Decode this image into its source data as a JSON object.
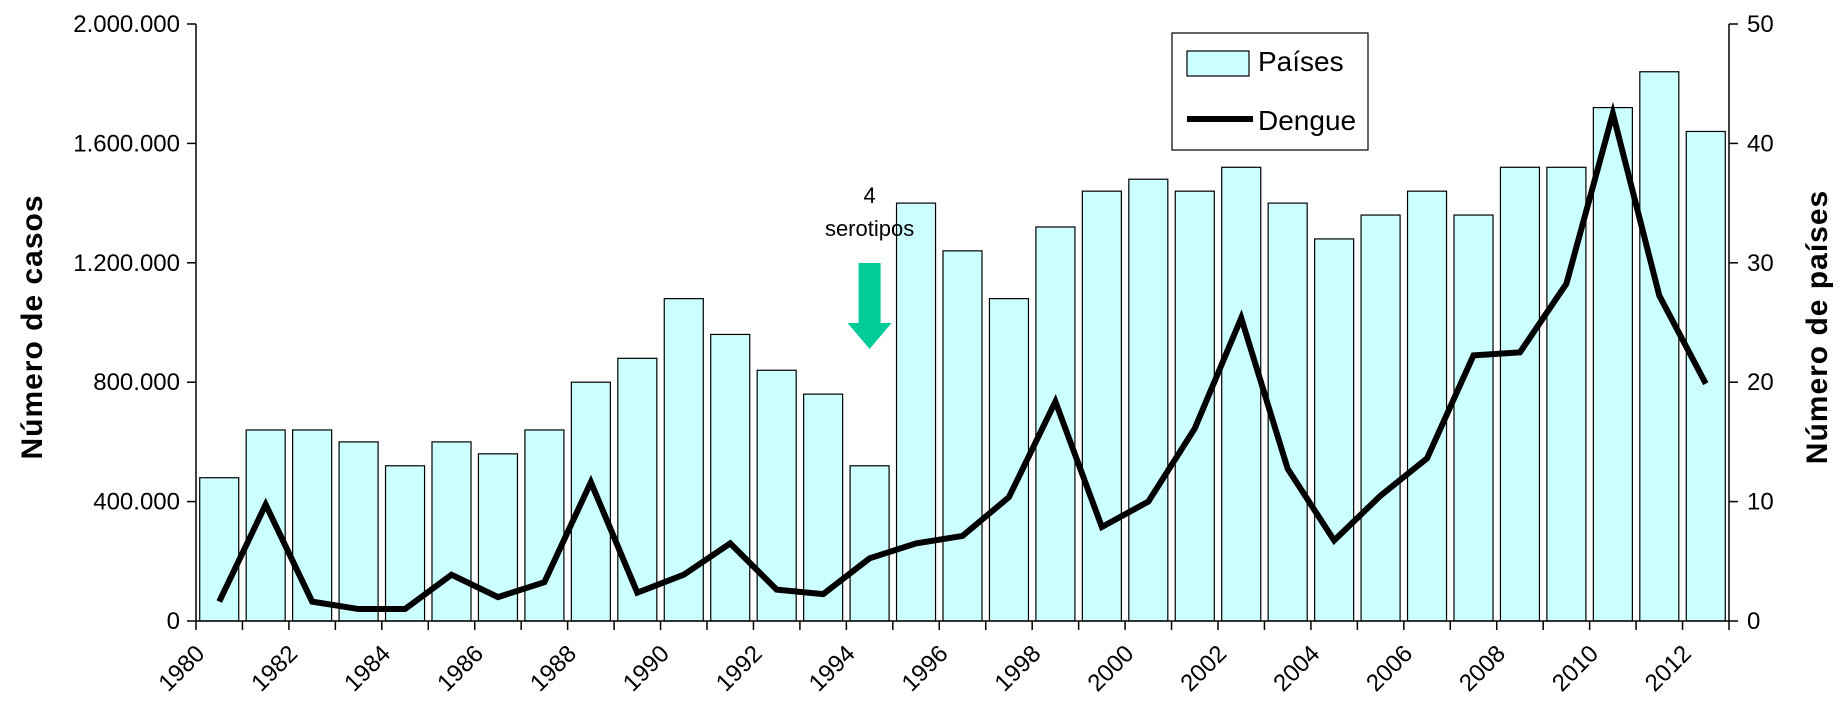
{
  "chart_data": {
    "type": "bar+line",
    "years": [
      1980,
      1981,
      1982,
      1983,
      1984,
      1985,
      1986,
      1987,
      1988,
      1989,
      1990,
      1991,
      1992,
      1993,
      1994,
      1995,
      1996,
      1997,
      1998,
      1999,
      2000,
      2001,
      2002,
      2003,
      2004,
      2005,
      2006,
      2007,
      2008,
      2009,
      2010,
      2011,
      2012
    ],
    "x_tick_labels": [
      "1980",
      "1982",
      "1984",
      "1986",
      "1988",
      "1990",
      "1992",
      "1994",
      "1996",
      "1998",
      "2000",
      "2002",
      "2004",
      "2006",
      "2008",
      "2010",
      "2012"
    ],
    "series": [
      {
        "name": "Países",
        "type": "bar",
        "axis": "right",
        "color": "#ccffff",
        "values": [
          12,
          16,
          16,
          15,
          13,
          15,
          14,
          16,
          20,
          22,
          27,
          24,
          21,
          19,
          13,
          35,
          31,
          27,
          33,
          36,
          37,
          36,
          38,
          35,
          32,
          34,
          36,
          34,
          38,
          38,
          43,
          46,
          41
        ]
      },
      {
        "name": "Dengue",
        "type": "line",
        "axis": "left",
        "color": "#000000",
        "values": [
          65000,
          390000,
          65000,
          40000,
          40000,
          155000,
          80000,
          130000,
          465000,
          95000,
          155000,
          260000,
          105000,
          90000,
          210000,
          260000,
          285000,
          415000,
          735000,
          315000,
          400000,
          645000,
          1015000,
          510000,
          270000,
          420000,
          545000,
          890000,
          900000,
          1130000,
          1700000,
          1090000,
          795000
        ]
      }
    ],
    "y_left": {
      "label": "Número de casos",
      "range": [
        0,
        2000000
      ],
      "ticks": [
        0,
        400000,
        800000,
        1200000,
        1600000,
        2000000
      ],
      "tick_labels": [
        "0",
        "400.000",
        "800.000",
        "1.200.000",
        "1.600.000",
        "2.000.000"
      ]
    },
    "y_right": {
      "label": "Número de países",
      "range": [
        0,
        50
      ],
      "ticks": [
        0,
        10,
        20,
        30,
        40,
        50
      ],
      "tick_labels": [
        "0",
        "10",
        "20",
        "30",
        "40",
        "50"
      ]
    },
    "legend": {
      "placement": "top-right",
      "entries": [
        "Países",
        "Dengue"
      ]
    },
    "annotation": {
      "lines": [
        "4",
        "serotipos"
      ],
      "year": 1994,
      "arrow_color": "#00cc99"
    },
    "grid": false
  }
}
